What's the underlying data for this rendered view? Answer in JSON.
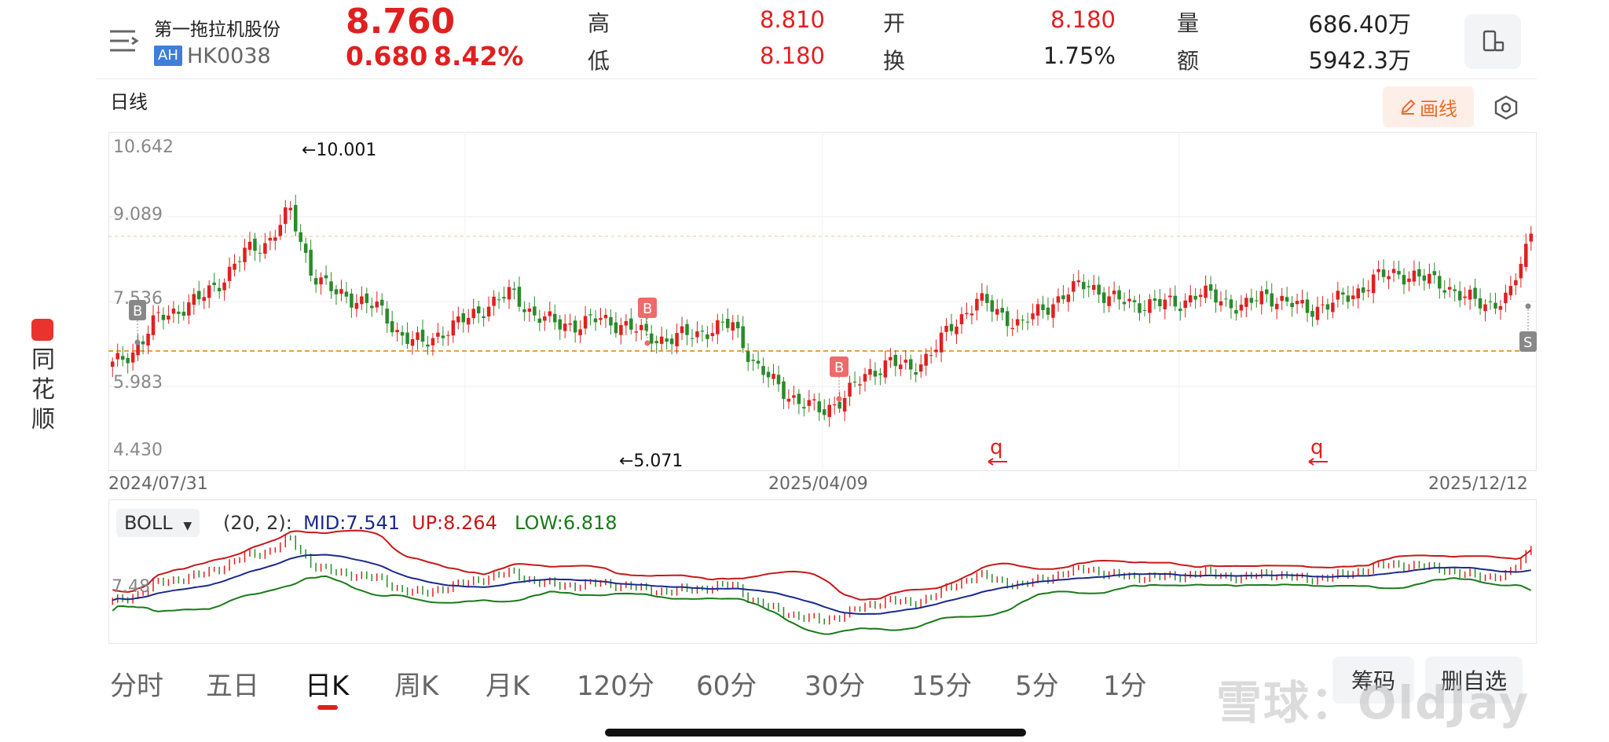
{
  "header": {
    "stock_name": "第一拖拉机股份",
    "ah_badge": "AH",
    "stock_code": "HK0038",
    "price": "8.760",
    "change": "0.680",
    "change_pct": "8.42%",
    "stats": {
      "high_label": "高",
      "high": "8.810",
      "low_label": "低",
      "low": "8.180",
      "open_label": "开",
      "open": "8.180",
      "turnover_label": "换",
      "turnover": "1.75%",
      "volume_label": "量",
      "volume": "686.40万",
      "amount_label": "额",
      "amount": "5942.3万"
    }
  },
  "toolbar": {
    "period_title": "日线",
    "draw_label": "画线"
  },
  "icons": {
    "menu": "menu-icon",
    "device": "phone-rotate-icon",
    "settings": "hexagon-settings-icon",
    "pencil": "pencil-icon"
  },
  "colors": {
    "up": "#e02020",
    "down": "#2a8a2a",
    "mid": "#1a2a8c",
    "upper_band": "#c81818",
    "lower_band": "#1a7a1a",
    "reference_line": "#e8a040"
  },
  "axis": {
    "y_labels": [
      "10.642",
      "9.089",
      "7.536",
      "5.983",
      "4.430"
    ],
    "x_labels": [
      "2024/07/31",
      "2025/04/09",
      "2025/12/12"
    ],
    "max_annotation": "←10.001",
    "min_annotation": "←5.071"
  },
  "markers": {
    "buy": "B",
    "sell": "S"
  },
  "boll": {
    "indicator": "BOLL",
    "params": "(20, 2):",
    "mid": "MID:7.541",
    "up": "UP:8.264",
    "low": "LOW:6.818",
    "y_label": "7.48"
  },
  "tabs": [
    "分时",
    "五日",
    "日K",
    "周K",
    "月K",
    "120分",
    "60分",
    "30分",
    "15分",
    "5分",
    "1分"
  ],
  "active_tab": "日K",
  "side_buttons": {
    "chips": "筹码",
    "remove_watch": "删自选"
  },
  "brand": "同花顺",
  "watermark": "雪球：OldJay",
  "chart_data": {
    "type": "candlestick",
    "y_range": [
      4.43,
      10.642
    ],
    "current_price": 8.76,
    "reference_price": 7.0,
    "max": 10.001,
    "min": 5.071,
    "x_range": [
      "2024/07/31",
      "2025/12/12"
    ],
    "closes_sampled": [
      6.2,
      6.5,
      7.1,
      7.3,
      7.5,
      7.9,
      8.4,
      8.6,
      9.2,
      8.0,
      7.6,
      7.5,
      7.3,
      6.8,
      6.6,
      6.9,
      7.1,
      7.4,
      7.6,
      7.2,
      7.0,
      7.0,
      7.1,
      7.0,
      6.8,
      6.7,
      6.8,
      6.9,
      7.0,
      6.2,
      5.8,
      5.5,
      5.3,
      5.6,
      6.0,
      6.3,
      6.1,
      6.5,
      7.0,
      7.5,
      7.2,
      7.0,
      7.3,
      7.6,
      7.8,
      7.5,
      7.4,
      7.4,
      7.4,
      7.6,
      7.5,
      7.3,
      7.6,
      7.4,
      7.3,
      7.4,
      7.6,
      7.9,
      8.0,
      7.9,
      7.8,
      7.5,
      7.4,
      7.5,
      8.76
    ]
  }
}
